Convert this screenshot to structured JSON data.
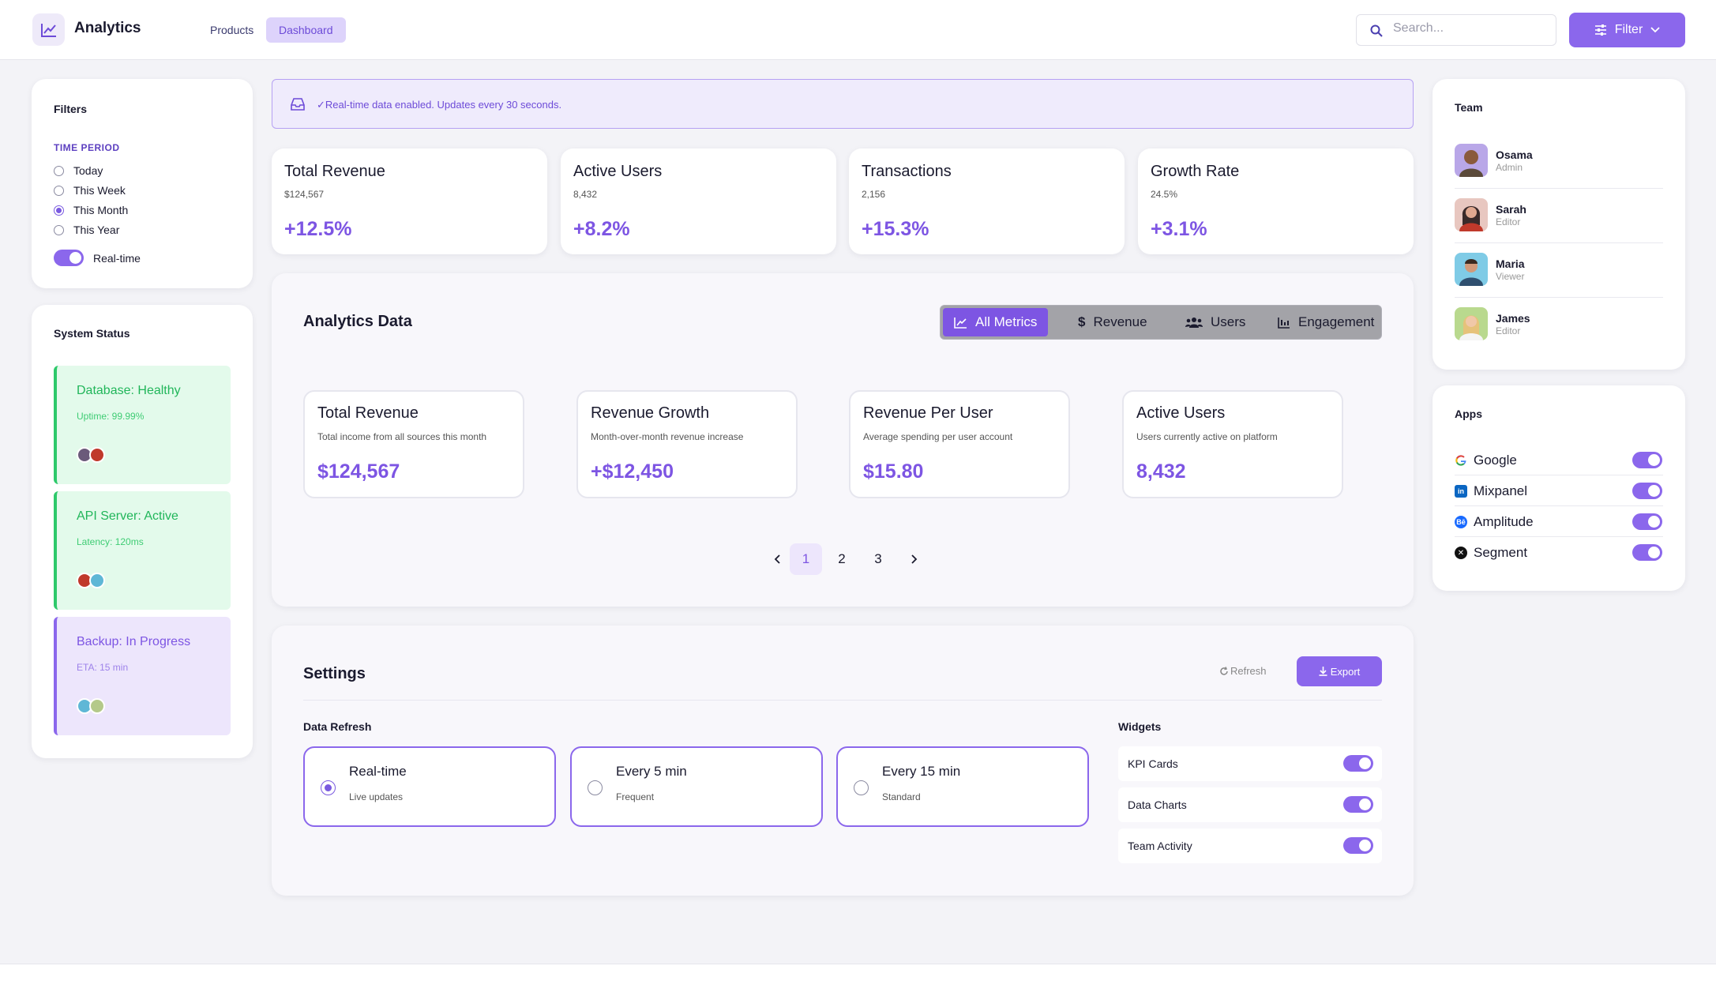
{
  "header": {
    "app_title": "Analytics",
    "nav": [
      {
        "label": "Products"
      },
      {
        "label": "Dashboard"
      }
    ],
    "search_placeholder": "Search...",
    "filter_label": "Filter"
  },
  "filters": {
    "title": "Filters",
    "section_label": "TIME PERIOD",
    "options": [
      {
        "label": "Today",
        "selected": false
      },
      {
        "label": "This Week",
        "selected": false
      },
      {
        "label": "This Month",
        "selected": true
      },
      {
        "label": "This Year",
        "selected": false
      }
    ],
    "realtime_label": "Real-time",
    "realtime_on": true
  },
  "system_status": {
    "title": "System Status",
    "items": [
      {
        "title": "Database: Healthy",
        "sub": "Uptime: 99.99%",
        "tone": "green"
      },
      {
        "title": "API Server: Active",
        "sub": "Latency: 120ms",
        "tone": "green"
      },
      {
        "title": "Backup: In Progress",
        "sub": "ETA: 15 min",
        "tone": "purple"
      }
    ]
  },
  "banner": {
    "text": "✓Real-time data enabled. Updates every 30 seconds."
  },
  "kpis": [
    {
      "title": "Total Revenue",
      "sub": "$124,567",
      "value": "+12.5%"
    },
    {
      "title": "Active Users",
      "sub": "8,432",
      "value": "+8.2%"
    },
    {
      "title": "Transactions",
      "sub": "2,156",
      "value": "+15.3%"
    },
    {
      "title": "Growth Rate",
      "sub": "24.5%",
      "value": "+3.1%"
    }
  ],
  "analytics": {
    "title": "Analytics Data",
    "tabs": [
      {
        "label": "All Metrics",
        "icon": "line-chart-icon"
      },
      {
        "label": "Revenue",
        "icon": "dollar-icon"
      },
      {
        "label": "Users",
        "icon": "users-icon"
      },
      {
        "label": "Engagement",
        "icon": "bar-chart-icon"
      }
    ],
    "metrics": [
      {
        "title": "Total Revenue",
        "desc": "Total income from all sources this month",
        "value": "$124,567"
      },
      {
        "title": "Revenue Growth",
        "desc": "Month-over-month revenue increase",
        "value": "+$12,450"
      },
      {
        "title": "Revenue Per User",
        "desc": "Average spending per user account",
        "value": "$15.80"
      },
      {
        "title": "Active Users",
        "desc": "Users currently active on platform",
        "value": "8,432"
      }
    ],
    "pages": [
      "1",
      "2",
      "3"
    ],
    "current_page": "1"
  },
  "settings": {
    "title": "Settings",
    "refresh_label": "Refresh",
    "export_label": "Export",
    "data_refresh_title": "Data Refresh",
    "refresh_options": [
      {
        "title": "Real-time",
        "sub": "Live updates",
        "selected": true
      },
      {
        "title": "Every 5 min",
        "sub": "Frequent",
        "selected": false
      },
      {
        "title": "Every 15 min",
        "sub": "Standard",
        "selected": false
      }
    ],
    "widgets_title": "Widgets",
    "widgets": [
      {
        "label": "KPI Cards",
        "on": true
      },
      {
        "label": "Data Charts",
        "on": true
      },
      {
        "label": "Team Activity",
        "on": true
      }
    ]
  },
  "team": {
    "title": "Team",
    "members": [
      {
        "name": "Osama",
        "role": "Admin"
      },
      {
        "name": "Sarah",
        "role": "Editor"
      },
      {
        "name": "Maria",
        "role": "Viewer"
      },
      {
        "name": "James",
        "role": "Editor"
      }
    ]
  },
  "apps": {
    "title": "Apps",
    "items": [
      {
        "name": "Google",
        "icon": "google-icon",
        "on": true
      },
      {
        "name": "Mixpanel",
        "icon": "mixpanel-icon",
        "on": true
      },
      {
        "name": "Amplitude",
        "icon": "amplitude-icon",
        "on": true
      },
      {
        "name": "Segment",
        "icon": "segment-icon",
        "on": true
      }
    ]
  },
  "colors": {
    "accent": "#8b67ec",
    "accent_text": "#7d55e3",
    "success": "#21b65a"
  }
}
